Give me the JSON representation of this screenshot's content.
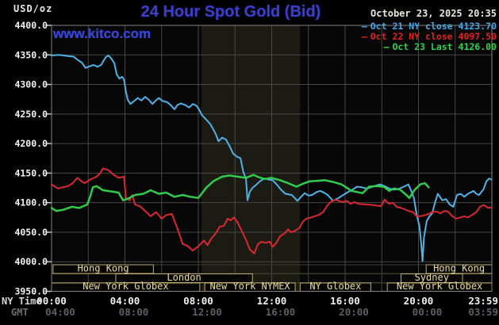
{
  "header": {
    "title": "24 Hour Spot Gold (Bid)",
    "datetime": "October 23, 2025 20:35",
    "watermark": "www.kitco.com",
    "y_axis_unit": "USD/oz"
  },
  "legend": {
    "items": [
      {
        "label": "Oct 21 NY close 4123.70",
        "color": "#46a6e6"
      },
      {
        "label": "Oct 22 NY close 4097.50",
        "color": "#e02222"
      },
      {
        "label": "Oct 23 Last 4126.00",
        "color": "#2fd24a"
      }
    ]
  },
  "axes": {
    "ny_time_label": "NY Time",
    "gmt_label": "GMT",
    "y_tick_labels": [
      "4400.0",
      "4350.0",
      "4300.0",
      "4250.0",
      "4200.0",
      "4150.0",
      "4100.0",
      "4050.0",
      "4000.0",
      "3950.0"
    ],
    "x_ticks": [
      {
        "t": 0,
        "ny": "00:00",
        "gmt": "04:00"
      },
      {
        "t": 4,
        "ny": "04:00",
        "gmt": "08:00"
      },
      {
        "t": 8,
        "ny": "08:00",
        "gmt": "12:00"
      },
      {
        "t": 12,
        "ny": "12:00",
        "gmt": "16:00"
      },
      {
        "t": 16,
        "ny": "16:00",
        "gmt": "20:00"
      },
      {
        "t": 20,
        "ny": "20:00",
        "gmt": "00:00"
      },
      {
        "t": 23.983,
        "ny": "23:59",
        "gmt": "03:59"
      }
    ]
  },
  "sessions": [
    {
      "row": 0,
      "label": "Hong Kong",
      "start": 0.08,
      "end": 5.55
    },
    {
      "row": 0,
      "label": "Hong Kong",
      "start": 20.42,
      "end": 24
    },
    {
      "row": 1,
      "label": "London",
      "start": 3.5,
      "end": 10.95
    },
    {
      "row": 1,
      "label": "Sydney",
      "start": 19.05,
      "end": 22.4
    },
    {
      "row": 2,
      "label": "New York Globex",
      "start": 0,
      "end": 8.08
    },
    {
      "row": 2,
      "label": "New York NYMEX",
      "start": 8.35,
      "end": 13.28
    },
    {
      "row": 2,
      "label": "NY Globex",
      "start": 13.55,
      "end": 17.4
    },
    {
      "row": 2,
      "label": "New York Globex",
      "start": 18.3,
      "end": 24
    }
  ],
  "colors": {
    "background": "#000000",
    "plot_bg": "#070707",
    "grid": "#474747",
    "frame": "#848484",
    "band": "#1b1b13",
    "session_border": "#bcab6c",
    "session_text": "#ecdc9c",
    "y_label": "#f2f2f2",
    "ny_label": "#f0f0f0",
    "gmt_label_color": "#5e5e64",
    "title_blue": "#3a3ecb"
  },
  "chart_data": {
    "type": "line",
    "title": "24 Hour Spot Gold (Bid)",
    "xlabel": "NY Time (hours, 00:00-23:59)",
    "ylabel": "USD/oz",
    "ylim": [
      3950,
      4400
    ],
    "xlim": [
      0,
      24
    ],
    "grid": true,
    "legend_position": "top-right",
    "nymex_band": {
      "start": 8.17,
      "end": 13.54
    },
    "series": [
      {
        "name": "Oct 21 NY close",
        "close": 4123.7,
        "color": "#4fb2e6",
        "width": 2,
        "points": [
          [
            0,
            4349
          ],
          [
            0.4,
            4350
          ],
          [
            0.9,
            4348
          ],
          [
            1.2,
            4347
          ],
          [
            1.45,
            4341
          ],
          [
            1.65,
            4337
          ],
          [
            1.85,
            4328
          ],
          [
            2.1,
            4331
          ],
          [
            2.3,
            4333
          ],
          [
            2.5,
            4330
          ],
          [
            2.7,
            4333
          ],
          [
            2.95,
            4346
          ],
          [
            3.1,
            4349
          ],
          [
            3.25,
            4344
          ],
          [
            3.42,
            4336
          ],
          [
            3.55,
            4317
          ],
          [
            3.7,
            4310
          ],
          [
            3.85,
            4313
          ],
          [
            3.95,
            4308
          ],
          [
            4.05,
            4288
          ],
          [
            4.15,
            4274
          ],
          [
            4.3,
            4267
          ],
          [
            4.5,
            4272
          ],
          [
            4.7,
            4277
          ],
          [
            4.9,
            4273
          ],
          [
            5.1,
            4279
          ],
          [
            5.3,
            4274
          ],
          [
            5.5,
            4267
          ],
          [
            5.65,
            4272
          ],
          [
            5.85,
            4277
          ],
          [
            6.05,
            4272
          ],
          [
            6.3,
            4270
          ],
          [
            6.5,
            4265
          ],
          [
            6.7,
            4258
          ],
          [
            6.85,
            4265
          ],
          [
            7.05,
            4268
          ],
          [
            7.3,
            4265
          ],
          [
            7.5,
            4261
          ],
          [
            7.7,
            4267
          ],
          [
            7.9,
            4264
          ],
          [
            8.05,
            4257
          ],
          [
            8.2,
            4248
          ],
          [
            8.45,
            4240
          ],
          [
            8.65,
            4233
          ],
          [
            8.8,
            4225
          ],
          [
            8.95,
            4216
          ],
          [
            9.1,
            4204
          ],
          [
            9.3,
            4210
          ],
          [
            9.5,
            4207
          ],
          [
            9.7,
            4196
          ],
          [
            9.9,
            4183
          ],
          [
            10.1,
            4178
          ],
          [
            10.3,
            4175
          ],
          [
            10.45,
            4152
          ],
          [
            10.6,
            4140
          ],
          [
            10.68,
            4104
          ],
          [
            10.8,
            4118
          ],
          [
            10.95,
            4125
          ],
          [
            11.15,
            4130
          ],
          [
            11.35,
            4136
          ],
          [
            11.6,
            4141
          ],
          [
            11.85,
            4139
          ],
          [
            12.05,
            4138
          ],
          [
            12.3,
            4130
          ],
          [
            12.5,
            4122
          ],
          [
            12.75,
            4115
          ],
          [
            13.1,
            4113
          ],
          [
            13.4,
            4103
          ],
          [
            13.6,
            4110
          ],
          [
            13.8,
            4116
          ],
          [
            14,
            4112
          ],
          [
            14.2,
            4113
          ],
          [
            14.45,
            4118
          ],
          [
            14.65,
            4120
          ],
          [
            14.9,
            4116
          ],
          [
            15.05,
            4113
          ],
          [
            15.35,
            4103
          ],
          [
            15.6,
            4107
          ],
          [
            15.85,
            4112
          ],
          [
            16.1,
            4117
          ],
          [
            16.4,
            4122
          ],
          [
            16.65,
            4127
          ],
          [
            16.9,
            4126
          ],
          [
            17.2,
            4124
          ],
          [
            17.5,
            4127
          ],
          [
            17.9,
            4131
          ],
          [
            18.15,
            4128
          ],
          [
            18.4,
            4124
          ],
          [
            18.65,
            4122
          ],
          [
            18.9,
            4123
          ],
          [
            19.2,
            4127
          ],
          [
            19.45,
            4131
          ],
          [
            19.6,
            4120
          ],
          [
            19.75,
            4108
          ],
          [
            19.9,
            4080
          ],
          [
            20.05,
            4060
          ],
          [
            20.15,
            4030
          ],
          [
            20.22,
            4001
          ],
          [
            20.3,
            4041
          ],
          [
            20.45,
            4069
          ],
          [
            20.6,
            4077
          ],
          [
            20.75,
            4082
          ],
          [
            20.9,
            4100
          ],
          [
            21.05,
            4115
          ],
          [
            21.3,
            4104
          ],
          [
            21.5,
            4106
          ],
          [
            21.7,
            4097
          ],
          [
            21.9,
            4093
          ],
          [
            22.1,
            4113
          ],
          [
            22.3,
            4115
          ],
          [
            22.5,
            4110
          ],
          [
            22.7,
            4115
          ],
          [
            23,
            4120
          ],
          [
            23.15,
            4115
          ],
          [
            23.3,
            4113
          ],
          [
            23.55,
            4123
          ],
          [
            23.7,
            4136
          ],
          [
            23.85,
            4141
          ],
          [
            23.98,
            4139
          ]
        ]
      },
      {
        "name": "Oct 22 NY close",
        "close": 4097.5,
        "color": "#da2830",
        "width": 2,
        "points": [
          [
            0,
            4131
          ],
          [
            0.35,
            4124
          ],
          [
            0.6,
            4126
          ],
          [
            0.9,
            4128
          ],
          [
            1.15,
            4133
          ],
          [
            1.4,
            4142
          ],
          [
            1.6,
            4137
          ],
          [
            1.8,
            4133
          ],
          [
            2.1,
            4139
          ],
          [
            2.45,
            4144
          ],
          [
            2.65,
            4150
          ],
          [
            2.8,
            4158
          ],
          [
            3.1,
            4155
          ],
          [
            3.35,
            4148
          ],
          [
            3.65,
            4142
          ],
          [
            3.95,
            4144
          ],
          [
            4.05,
            4108
          ],
          [
            4.25,
            4104
          ],
          [
            4.4,
            4113
          ],
          [
            4.55,
            4097
          ],
          [
            4.85,
            4093
          ],
          [
            5.1,
            4086
          ],
          [
            5.4,
            4077
          ],
          [
            5.7,
            4084
          ],
          [
            6,
            4073
          ],
          [
            6.25,
            4079
          ],
          [
            6.55,
            4081
          ],
          [
            6.85,
            4057
          ],
          [
            7.15,
            4030
          ],
          [
            7.4,
            4027
          ],
          [
            7.7,
            4019
          ],
          [
            8,
            4026
          ],
          [
            8.3,
            4036
          ],
          [
            8.5,
            4028
          ],
          [
            8.7,
            4039
          ],
          [
            8.95,
            4048
          ],
          [
            9.15,
            4059
          ],
          [
            9.4,
            4061
          ],
          [
            9.6,
            4073
          ],
          [
            9.75,
            4070
          ],
          [
            9.95,
            4075
          ],
          [
            10.15,
            4066
          ],
          [
            10.4,
            4050
          ],
          [
            10.6,
            4037
          ],
          [
            10.8,
            4021
          ],
          [
            11.05,
            4014
          ],
          [
            11.25,
            4030
          ],
          [
            11.45,
            4034
          ],
          [
            11.65,
            4032
          ],
          [
            11.9,
            4034
          ],
          [
            12.05,
            4025
          ],
          [
            12.25,
            4032
          ],
          [
            12.45,
            4043
          ],
          [
            12.7,
            4048
          ],
          [
            12.9,
            4055
          ],
          [
            13.05,
            4050
          ],
          [
            13.25,
            4052
          ],
          [
            13.5,
            4057
          ],
          [
            13.7,
            4068
          ],
          [
            13.9,
            4073
          ],
          [
            14.15,
            4075
          ],
          [
            14.35,
            4077
          ],
          [
            14.55,
            4079
          ],
          [
            14.8,
            4084
          ],
          [
            15,
            4094
          ],
          [
            15.2,
            4101
          ],
          [
            15.45,
            4105
          ],
          [
            15.65,
            4103
          ],
          [
            15.85,
            4101
          ],
          [
            16.1,
            4103
          ],
          [
            16.3,
            4098
          ],
          [
            16.5,
            4101
          ],
          [
            16.75,
            4098
          ],
          [
            17.1,
            4097
          ],
          [
            17.5,
            4096
          ],
          [
            17.95,
            4094
          ],
          [
            18.15,
            4105
          ],
          [
            18.4,
            4098
          ],
          [
            18.6,
            4100
          ],
          [
            18.8,
            4093
          ],
          [
            19.05,
            4091
          ],
          [
            19.25,
            4089
          ],
          [
            19.45,
            4086
          ],
          [
            19.7,
            4084
          ],
          [
            19.9,
            4077
          ],
          [
            20.1,
            4077
          ],
          [
            20.35,
            4079
          ],
          [
            20.55,
            4081
          ],
          [
            20.75,
            4084
          ],
          [
            21,
            4085
          ],
          [
            21.2,
            4082
          ],
          [
            21.4,
            4086
          ],
          [
            21.6,
            4085
          ],
          [
            21.85,
            4077
          ],
          [
            22.05,
            4073
          ],
          [
            22.3,
            4075
          ],
          [
            22.5,
            4077
          ],
          [
            22.7,
            4075
          ],
          [
            22.9,
            4079
          ],
          [
            23.15,
            4084
          ],
          [
            23.35,
            4093
          ],
          [
            23.55,
            4096
          ],
          [
            23.8,
            4091
          ],
          [
            23.98,
            4092
          ]
        ]
      },
      {
        "name": "Oct 23 Last",
        "last": 4126.0,
        "color": "#30cc4c",
        "width": 2.5,
        "points": [
          [
            0,
            4091
          ],
          [
            0.25,
            4086
          ],
          [
            0.65,
            4088
          ],
          [
            1.1,
            4093
          ],
          [
            1.5,
            4091
          ],
          [
            1.95,
            4097
          ],
          [
            2.1,
            4110
          ],
          [
            2.25,
            4126
          ],
          [
            2.45,
            4128
          ],
          [
            2.8,
            4121
          ],
          [
            3.25,
            4119
          ],
          [
            3.65,
            4117
          ],
          [
            3.9,
            4104
          ],
          [
            4.1,
            4106
          ],
          [
            4.55,
            4113
          ],
          [
            5,
            4115
          ],
          [
            5.4,
            4121
          ],
          [
            5.85,
            4115
          ],
          [
            6.25,
            4117
          ],
          [
            6.7,
            4110
          ],
          [
            7.15,
            4113
          ],
          [
            7.55,
            4110
          ],
          [
            8,
            4108
          ],
          [
            8.45,
            4126
          ],
          [
            8.85,
            4137
          ],
          [
            9.3,
            4144
          ],
          [
            9.7,
            4146
          ],
          [
            10.15,
            4144
          ],
          [
            10.6,
            4142
          ],
          [
            11,
            4147
          ],
          [
            11.3,
            4143
          ],
          [
            11.6,
            4140
          ],
          [
            12,
            4142
          ],
          [
            12.45,
            4138
          ],
          [
            12.9,
            4133
          ],
          [
            13.35,
            4127
          ],
          [
            13.7,
            4132
          ],
          [
            14.05,
            4136
          ],
          [
            14.5,
            4137
          ],
          [
            14.9,
            4138
          ],
          [
            15.35,
            4135
          ],
          [
            15.8,
            4131
          ],
          [
            16.35,
            4120
          ],
          [
            16.95,
            4116
          ],
          [
            17.3,
            4127
          ],
          [
            17.7,
            4128
          ],
          [
            18.1,
            4127
          ],
          [
            18.4,
            4120
          ],
          [
            18.65,
            4124
          ],
          [
            19,
            4122
          ],
          [
            19.3,
            4114
          ],
          [
            19.5,
            4108
          ],
          [
            19.8,
            4122
          ],
          [
            20.1,
            4131
          ],
          [
            20.35,
            4133
          ],
          [
            20.55,
            4126
          ]
        ]
      }
    ]
  }
}
